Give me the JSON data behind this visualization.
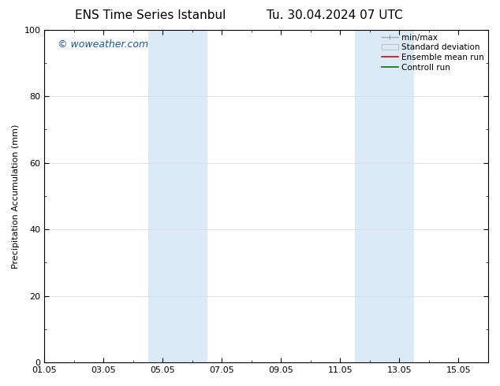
{
  "title_left": "ENS Time Series Istanbul",
  "title_right": "Tu. 30.04.2024 07 UTC",
  "ylabel": "Precipitation Accumulation (mm)",
  "ylim": [
    0,
    100
  ],
  "yticks": [
    0,
    20,
    40,
    60,
    80,
    100
  ],
  "xlim": [
    0,
    15
  ],
  "xtick_labels": [
    "01.05",
    "03.05",
    "05.05",
    "07.05",
    "09.05",
    "11.05",
    "13.05",
    "15.05"
  ],
  "xtick_positions": [
    0,
    2,
    4,
    6,
    8,
    10,
    12,
    14
  ],
  "shaded_regions": [
    {
      "x_start": 3.5,
      "x_end": 5.5,
      "color": "#daeaf7"
    },
    {
      "x_start": 10.5,
      "x_end": 12.5,
      "color": "#daeaf7"
    }
  ],
  "watermark": "© woweather.com",
  "watermark_color": "#1155bb",
  "background_color": "#ffffff",
  "grid_color": "#dddddd",
  "legend_items": [
    {
      "label": "min/max",
      "type": "errorbar",
      "color": "#aaaaaa"
    },
    {
      "label": "Standard deviation",
      "type": "patch",
      "facecolor": "#daeaf7",
      "edgecolor": "#aaaaaa"
    },
    {
      "label": "Ensemble mean run",
      "type": "line",
      "color": "#dd0000",
      "lw": 1.2
    },
    {
      "label": "Controll run",
      "type": "line",
      "color": "#007700",
      "lw": 1.2
    }
  ],
  "title_fontsize": 11,
  "axis_label_fontsize": 8,
  "tick_label_fontsize": 8,
  "legend_fontsize": 7.5,
  "watermark_fontsize": 9
}
